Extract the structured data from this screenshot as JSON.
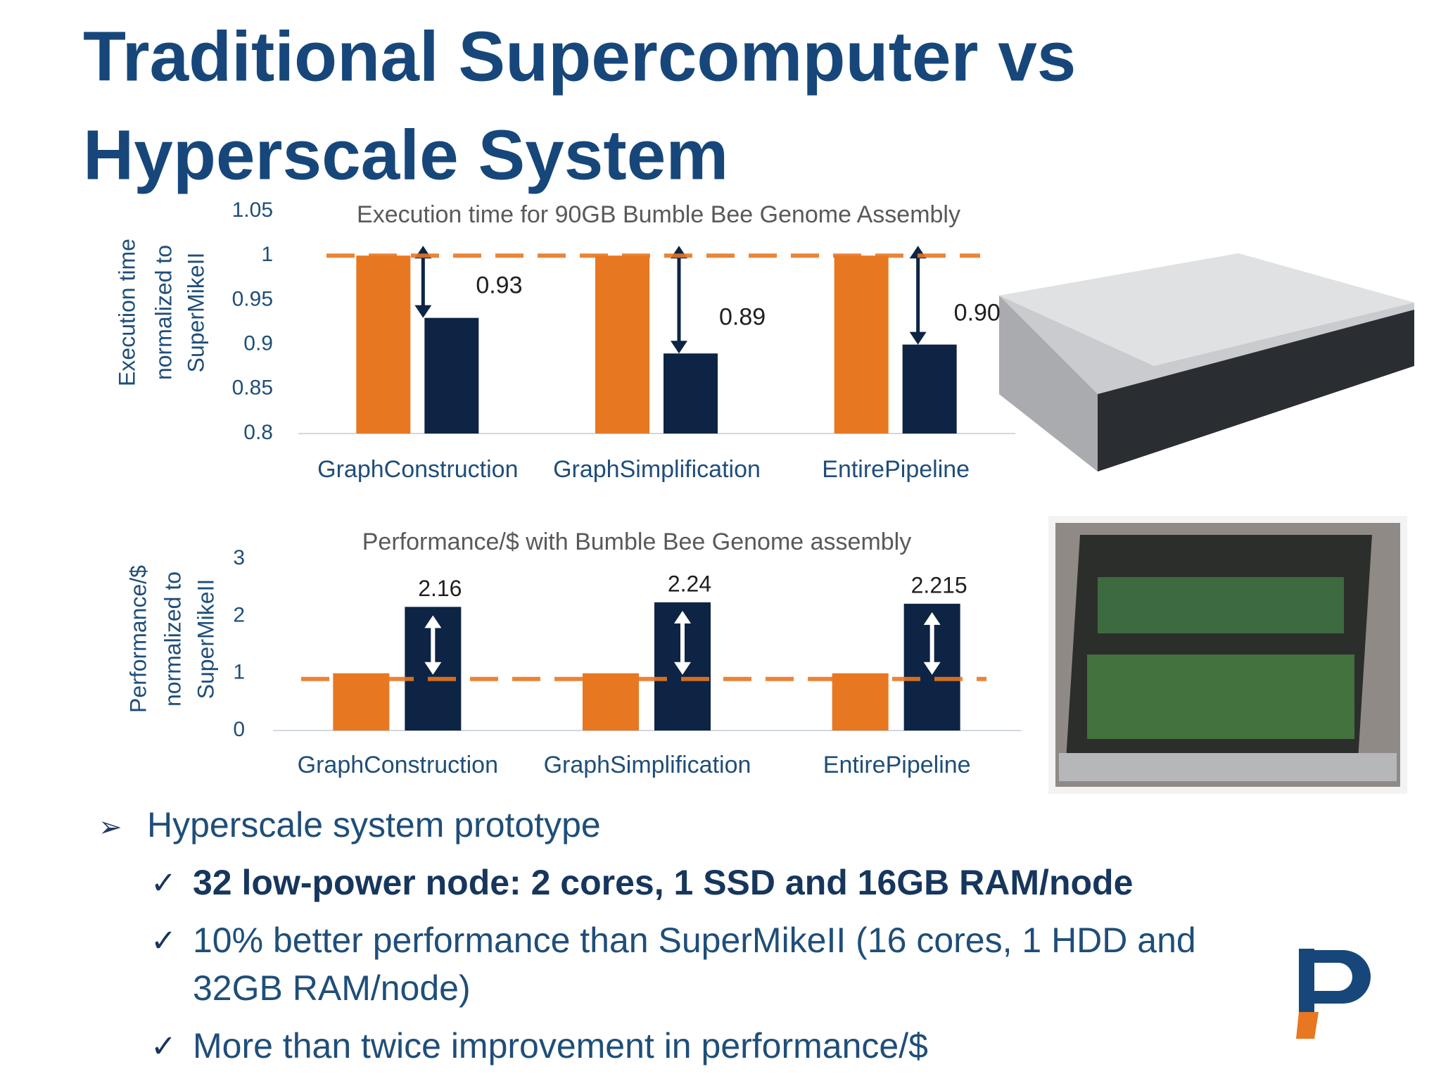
{
  "title_lines": [
    "Traditional Supercomputer vs",
    "Hyperscale System"
  ],
  "chart_data": [
    {
      "type": "bar",
      "title": "Execution time for 90GB Bumble Bee Genome Assembly",
      "y_label": [
        "Execution time",
        "normalized to",
        "SuperMikeII"
      ],
      "categories": [
        "GraphConstruction",
        "GraphSimplification",
        "EntirePipeline"
      ],
      "series": [
        {
          "color": "#e87722",
          "values": [
            1,
            1,
            1
          ]
        },
        {
          "color": "#0d2444",
          "values": [
            0.93,
            0.89,
            0.9
          ],
          "value_labels": [
            "0.93",
            "0.89",
            "0.90"
          ]
        }
      ],
      "hline": 1,
      "ylim": [
        0.8,
        1.05
      ],
      "yticks": [
        0.8,
        0.85,
        0.9,
        0.95,
        1,
        1.05
      ]
    },
    {
      "type": "bar",
      "title": "Performance/$ with Bumble Bee Genome assembly",
      "y_label": [
        "Performance/$",
        "normalized to",
        "SuperMikeII"
      ],
      "categories": [
        "GraphConstruction",
        "GraphSimplification",
        "EntirePipeline"
      ],
      "series": [
        {
          "color": "#e87722",
          "values": [
            1,
            1,
            1
          ]
        },
        {
          "color": "#0d2444",
          "values": [
            2.16,
            2.24,
            2.215
          ]
        }
      ],
      "hline": 0.9,
      "ylim": [
        0,
        3
      ],
      "yticks": [
        0,
        1,
        2,
        3
      ]
    }
  ],
  "bullets": {
    "main": "Hyperscale system prototype",
    "items": [
      "32 low-power node: 2 cores, 1 SSD and 16GB RAM/node",
      "10% better performance than SuperMikeII (16 cores, 1 HDD and",
      "32GB RAM/node)",
      "More than twice improvement in performance/$"
    ]
  }
}
